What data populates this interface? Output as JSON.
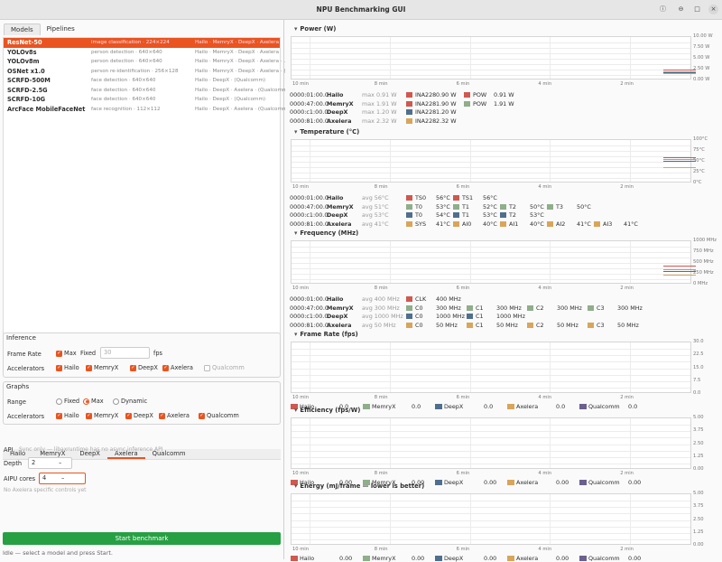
{
  "window": {
    "title": "NPU Benchmarking GUI",
    "min": "⊖",
    "max": "□",
    "close": "×",
    "help": "ⓘ"
  },
  "tabs": [
    "Models",
    "Pipelines"
  ],
  "models": [
    {
      "name": "ResNet-50",
      "task": "image classification · 224×224",
      "vendors": "Hailo · MemryX · DeepX · Axelera"
    },
    {
      "name": "YOLOv8s",
      "task": "person detection · 640×640",
      "vendors": "Hailo · MemryX · DeepX · Axelera"
    },
    {
      "name": "YOLOv8m",
      "task": "person detection · 640×640",
      "vendors": "Hailo · MemryX · DeepX · Axelera · ..."
    },
    {
      "name": "OSNet x1.0",
      "task": "person re-identification · 256×128",
      "vendors": "Hailo · MemryX · DeepX · Axelera · (Qualcomm)"
    },
    {
      "name": "SCRFD-500M",
      "task": "face detection · 640×640",
      "vendors": "Hailo · DeepX · (Qualcomm)"
    },
    {
      "name": "SCRFD-2.5G",
      "task": "face detection · 640×640",
      "vendors": "Hailo · DeepX · Axelera · (Qualcomm)"
    },
    {
      "name": "SCRFD-10G",
      "task": "face detection · 640×640",
      "vendors": "Hailo · DeepX · (Qualcomm)"
    },
    {
      "name": "ArcFace MobileFaceNet",
      "task": "face recognition · 112×112",
      "vendors": "Hailo · DeepX · Axelera · (Qualcomm)"
    }
  ],
  "inference": {
    "title": "Inference",
    "frame_rate_label": "Frame Rate",
    "max_label": "Max",
    "fixed_label": "Fixed",
    "fixed_value": "30",
    "fps": "fps",
    "accel_label": "Accelerators",
    "accels": [
      "Hailo",
      "MemryX",
      "DeepX",
      "Axelera",
      "Qualcomm"
    ]
  },
  "graphs": {
    "title": "Graphs",
    "range_label": "Range",
    "range_opts": [
      "Fixed",
      "Max",
      "Dynamic"
    ],
    "accel_label": "Accelerators",
    "accels": [
      "Hailo",
      "MemryX",
      "DeepX",
      "Axelera",
      "Qualcomm"
    ]
  },
  "vendor_tabs": [
    "Hailo",
    "MemryX",
    "DeepX",
    "Axelera",
    "Qualcomm"
  ],
  "axelera": {
    "api_label": "API",
    "api_text": "Sync only — libaxruntime has no async inference API",
    "depth_label": "Depth",
    "depth_value": "2",
    "depth_btns": "–",
    "aipu_label": "AIPU cores",
    "aipu_value": "4",
    "aipu_btns": "–",
    "note": "No Axelera specific controls yet"
  },
  "start_label": "Start benchmark",
  "status": "Idle — select a model and press Start.",
  "colors": {
    "accent": "#e95420",
    "hailo": "#d0584f",
    "memryx": "#8fae8a",
    "deepx": "#4f6f8f",
    "axelera": "#d9a55a",
    "qualcomm": "#6b6090",
    "green": "#26a043"
  },
  "xticks": [
    "10 min",
    "8 min",
    "6 min",
    "4 min",
    "2 min"
  ],
  "power": {
    "title": "Power (W)",
    "yticks": [
      "10.00 W",
      "7.50 W",
      "5.00 W",
      "2.50 W",
      "0.00 W"
    ],
    "rows": [
      {
        "addr": "0000:01:00.0",
        "name": "Hailo",
        "val": "max 0.91 W",
        "m": [
          [
            "INA228",
            "0.90 W",
            "hailo"
          ],
          [
            "POW",
            "0.91 W",
            "hailo"
          ]
        ]
      },
      {
        "addr": "0000:47:00.0",
        "name": "MemryX",
        "val": "max 1.91 W",
        "m": [
          [
            "INA228",
            "1.90 W",
            "hailo"
          ],
          [
            "POW",
            "1.91 W",
            "memryx"
          ]
        ]
      },
      {
        "addr": "0000:c1:00.0",
        "name": "DeepX",
        "val": "max 1.20 W",
        "m": [
          [
            "INA228",
            "1.20 W",
            "deepx"
          ]
        ]
      },
      {
        "addr": "0000:81:00.0",
        "name": "Axelera",
        "val": "max 2.32 W",
        "m": [
          [
            "INA228",
            "2.32 W",
            "axelera"
          ]
        ]
      }
    ]
  },
  "temp": {
    "title": "Temperature (°C)",
    "yticks": [
      "100°C",
      "75°C",
      "50°C",
      "25°C",
      "0°C"
    ],
    "rows": [
      {
        "addr": "0000:01:00.0",
        "name": "Hailo",
        "val": "avg 56°C",
        "m": [
          [
            "TS0",
            "56°C",
            "hailo"
          ],
          [
            "TS1",
            "56°C",
            "hailo"
          ]
        ]
      },
      {
        "addr": "0000:47:00.0",
        "name": "MemryX",
        "val": "avg 51°C",
        "m": [
          [
            "T0",
            "53°C",
            "memryx"
          ],
          [
            "T1",
            "52°C",
            "memryx"
          ],
          [
            "T2",
            "50°C",
            "memryx"
          ],
          [
            "T3",
            "50°C",
            "memryx"
          ]
        ]
      },
      {
        "addr": "0000:c1:00.0",
        "name": "DeepX",
        "val": "avg 53°C",
        "m": [
          [
            "T0",
            "54°C",
            "deepx"
          ],
          [
            "T1",
            "53°C",
            "deepx"
          ],
          [
            "T2",
            "53°C",
            "deepx"
          ]
        ]
      },
      {
        "addr": "0000:81:00.0",
        "name": "Axelera",
        "val": "avg 41°C",
        "m": [
          [
            "SYS",
            "41°C",
            "axelera"
          ],
          [
            "AI0",
            "40°C",
            "axelera"
          ],
          [
            "AI1",
            "40°C",
            "axelera"
          ],
          [
            "AI2",
            "41°C",
            "axelera"
          ],
          [
            "AI3",
            "41°C",
            "axelera"
          ]
        ]
      }
    ]
  },
  "freq": {
    "title": "Frequency (MHz)",
    "yticks": [
      "1000 MHz",
      "750 MHz",
      "500 MHz",
      "250 MHz",
      "0 MHz"
    ],
    "rows": [
      {
        "addr": "0000:01:00.0",
        "name": "Hailo",
        "val": "avg 400 MHz",
        "m": [
          [
            "CLK",
            "400 MHz",
            "hailo"
          ]
        ]
      },
      {
        "addr": "0000:47:00.0",
        "name": "MemryX",
        "val": "avg 300 MHz",
        "m": [
          [
            "C0",
            "300 MHz",
            "memryx"
          ],
          [
            "C1",
            "300 MHz",
            "memryx"
          ],
          [
            "C2",
            "300 MHz",
            "memryx"
          ],
          [
            "C3",
            "300 MHz",
            "memryx"
          ]
        ]
      },
      {
        "addr": "0000:c1:00.0",
        "name": "DeepX",
        "val": "avg 1000 MHz",
        "m": [
          [
            "C0",
            "1000 MHz",
            "deepx"
          ],
          [
            "C1",
            "1000 MHz",
            "deepx"
          ]
        ]
      },
      {
        "addr": "0000:81:00.0",
        "name": "Axelera",
        "val": "avg 50 MHz",
        "m": [
          [
            "C0",
            "50 MHz",
            "axelera"
          ],
          [
            "C1",
            "50 MHz",
            "axelera"
          ],
          [
            "C2",
            "50 MHz",
            "axelera"
          ],
          [
            "C3",
            "50 MHz",
            "axelera"
          ]
        ]
      }
    ]
  },
  "fps": {
    "title": "Frame Rate (fps)",
    "yticks": [
      "30.0",
      "22.5",
      "15.0",
      "7.5",
      "0.0"
    ],
    "legend": [
      [
        "Hailo",
        "0.0",
        "hailo"
      ],
      [
        "MemryX",
        "0.0",
        "memryx"
      ],
      [
        "DeepX",
        "0.0",
        "deepx"
      ],
      [
        "Axelera",
        "0.0",
        "axelera"
      ],
      [
        "Qualcomm",
        "0.0",
        "qualcomm"
      ]
    ]
  },
  "eff": {
    "title": "Efficiency (fps/W)",
    "yticks": [
      "5.00",
      "3.75",
      "2.50",
      "1.25",
      "0.00"
    ],
    "legend": [
      [
        "Hailo",
        "0.00",
        "hailo"
      ],
      [
        "MemryX",
        "0.00",
        "memryx"
      ],
      [
        "DeepX",
        "0.00",
        "deepx"
      ],
      [
        "Axelera",
        "0.00",
        "axelera"
      ],
      [
        "Qualcomm",
        "0.00",
        "qualcomm"
      ]
    ]
  },
  "energy": {
    "title": "Energy (mJ/frame — lower is better)",
    "yticks": [
      "5.00",
      "3.75",
      "2.50",
      "1.25",
      "0.00"
    ],
    "legend": [
      [
        "Hailo",
        "0.00",
        "hailo"
      ],
      [
        "MemryX",
        "0.00",
        "memryx"
      ],
      [
        "DeepX",
        "0.00",
        "deepx"
      ],
      [
        "Axelera",
        "0.00",
        "axelera"
      ],
      [
        "Qualcomm",
        "0.00",
        "qualcomm"
      ]
    ]
  }
}
